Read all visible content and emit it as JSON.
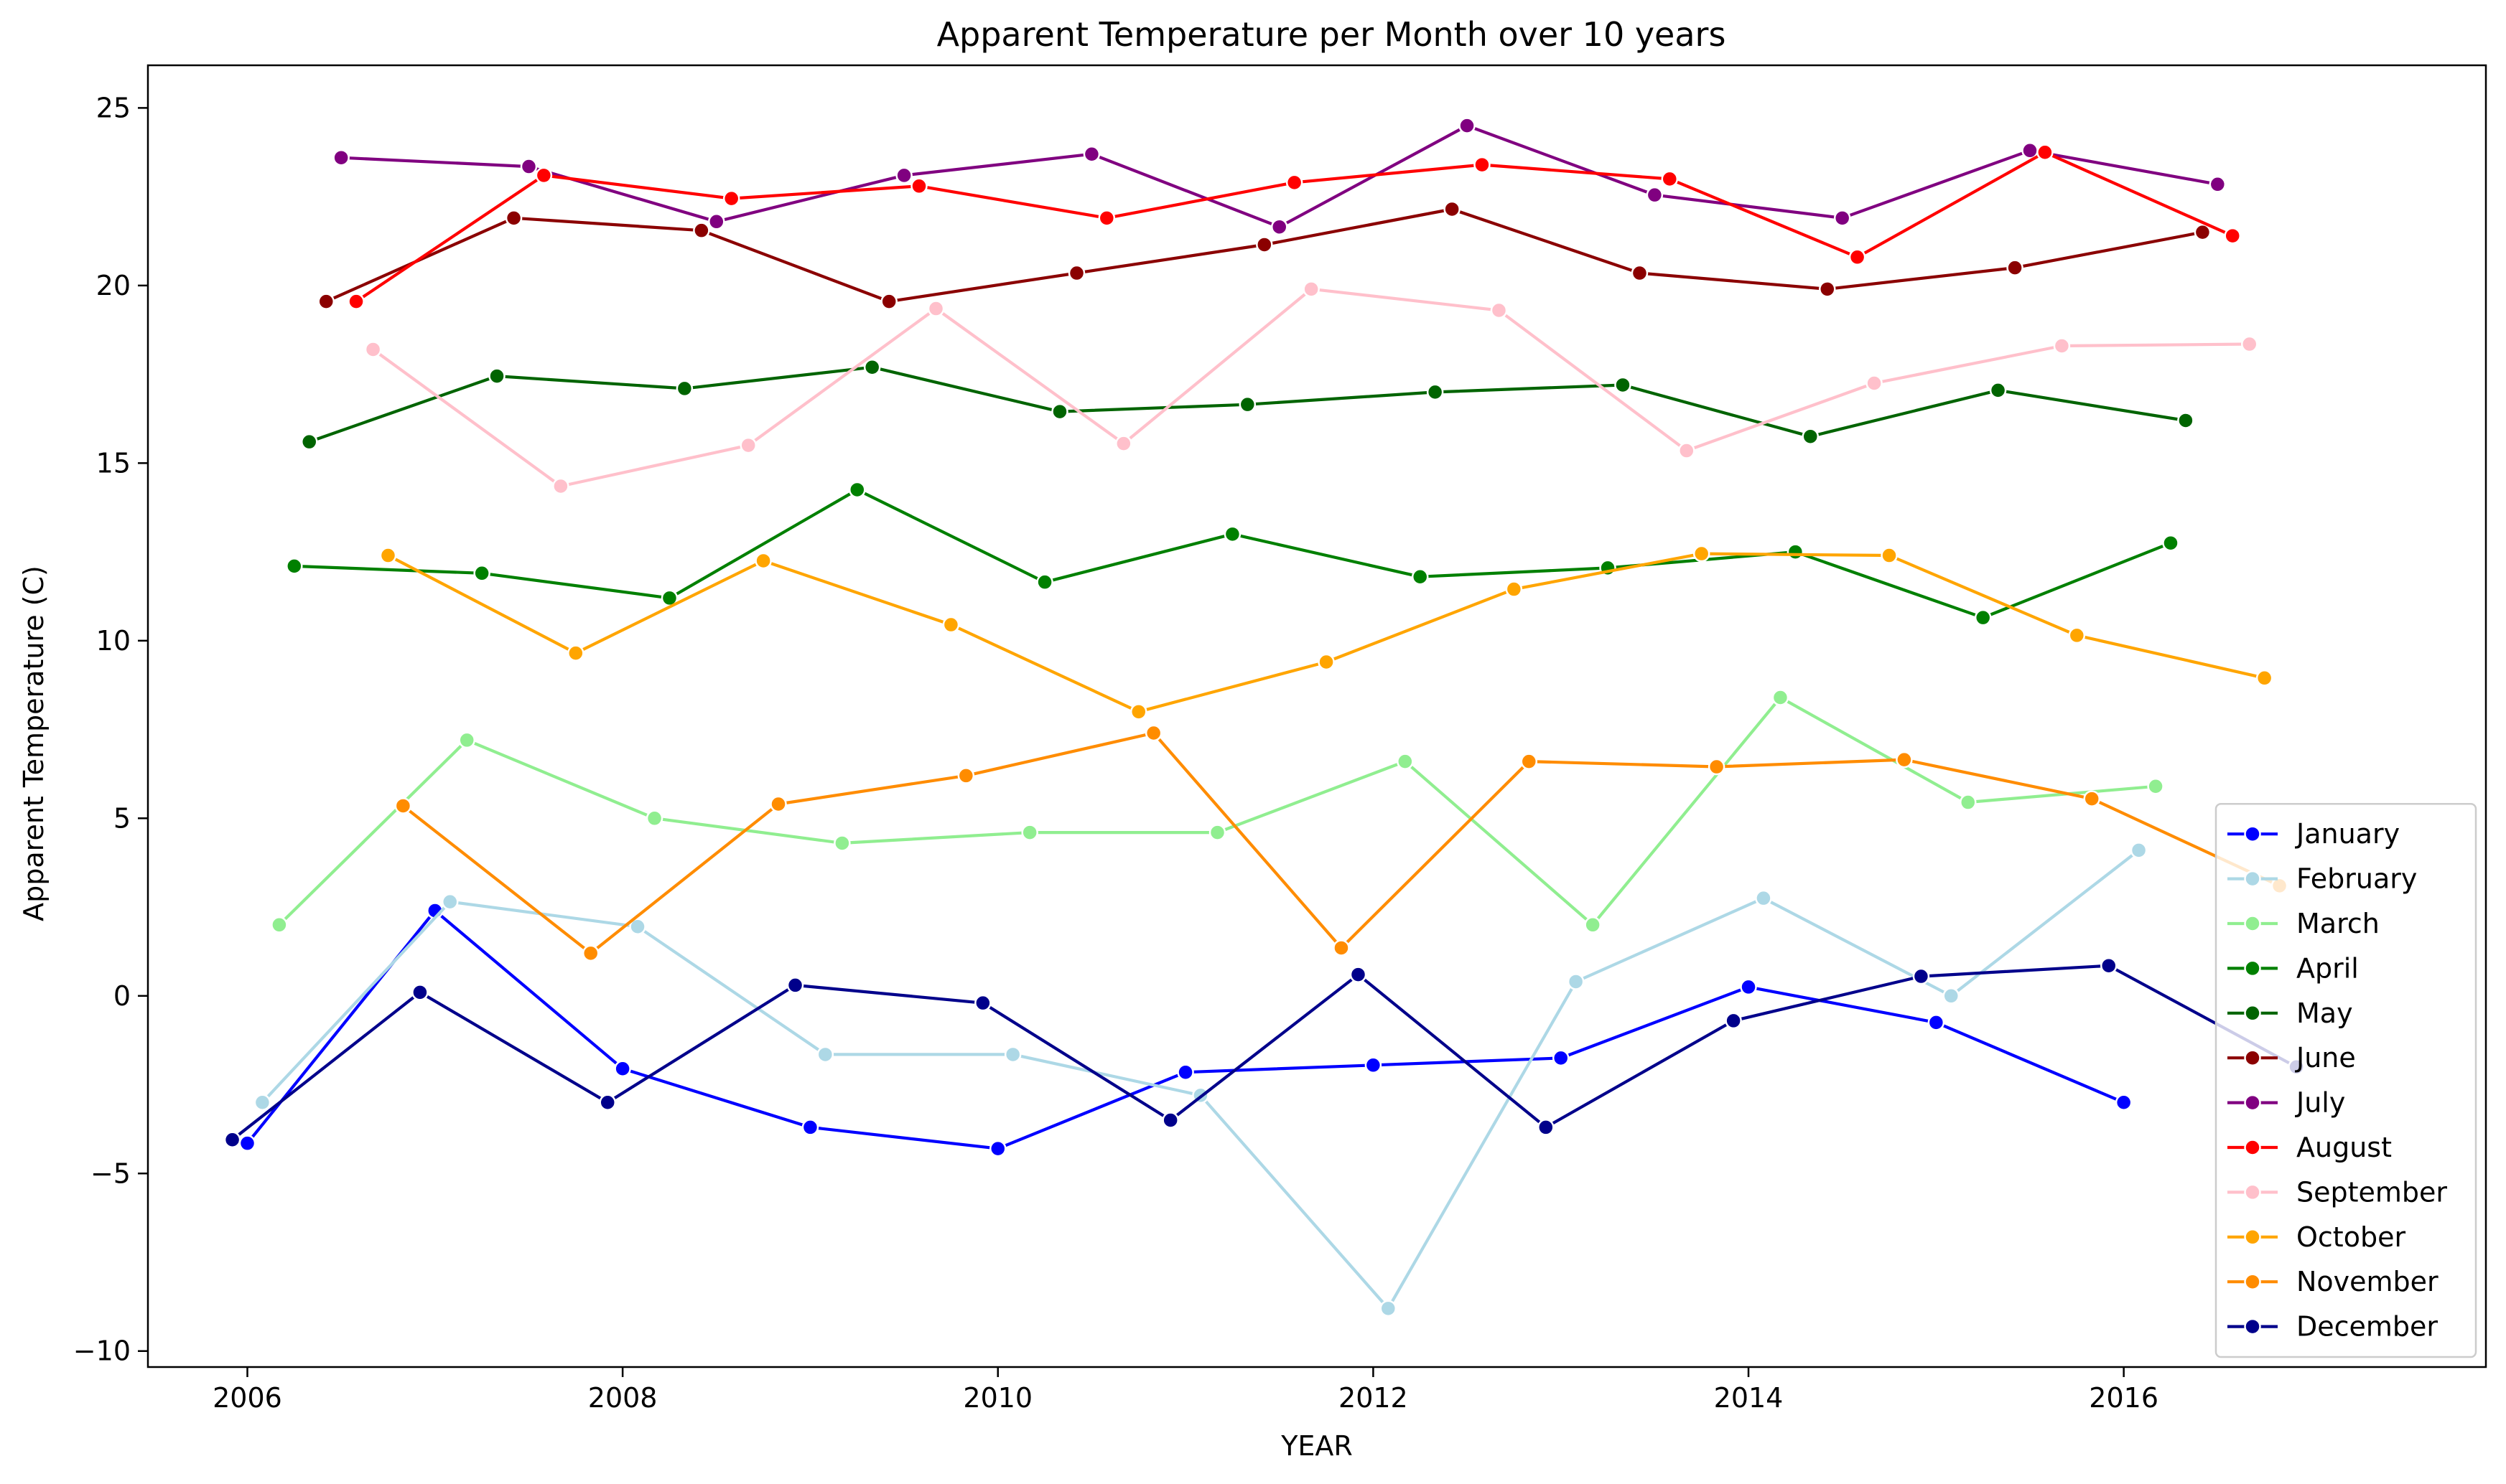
{
  "chart_data": {
    "type": "line",
    "title": "Apparent Temperature per Month over 10 years",
    "xlabel": "YEAR",
    "ylabel": "Apparent Temperature (C)",
    "xlim": [
      2005.47,
      2017.93
    ],
    "ylim": [
      -10.45,
      26.2
    ],
    "x_ticks": [
      2006,
      2008,
      2010,
      2012,
      2014,
      2016
    ],
    "x_tick_labels": [
      "2006",
      "2008",
      "2010",
      "2012",
      "2014",
      "2016"
    ],
    "y_ticks": [
      -10,
      -5,
      0,
      5,
      10,
      15,
      20,
      25
    ],
    "y_tick_labels": [
      "−10",
      "−5",
      "0",
      "5",
      "10",
      "15",
      "20",
      "25"
    ],
    "grid": false,
    "legend_position": "lower-right",
    "series": [
      {
        "name": "January",
        "color": "#0000ff",
        "x": [
          2006.0,
          2007.0,
          2008.0,
          2009.0,
          2010.0,
          2011.0,
          2012.0,
          2013.0,
          2014.0,
          2015.0,
          2016.0
        ],
        "y": [
          -4.15,
          2.4,
          -2.05,
          -3.7,
          -4.3,
          -2.15,
          -1.95,
          -1.75,
          0.25,
          -0.75,
          -3.0
        ]
      },
      {
        "name": "February",
        "color": "#add8e6",
        "x": [
          2006.08,
          2007.08,
          2008.08,
          2009.08,
          2010.08,
          2011.08,
          2012.08,
          2013.08,
          2014.08,
          2015.08,
          2016.08
        ],
        "y": [
          -3.0,
          2.65,
          1.95,
          -1.65,
          -1.65,
          -2.8,
          -8.8,
          0.4,
          2.75,
          0.0,
          4.1
        ]
      },
      {
        "name": "March",
        "color": "#90ee90",
        "x": [
          2006.17,
          2007.17,
          2008.17,
          2009.17,
          2010.17,
          2011.17,
          2012.17,
          2013.17,
          2014.17,
          2015.17,
          2016.17
        ],
        "y": [
          2.0,
          7.2,
          5.0,
          4.3,
          4.6,
          4.6,
          6.6,
          2.0,
          8.4,
          5.45,
          5.9
        ]
      },
      {
        "name": "April",
        "color": "#008000",
        "x": [
          2006.25,
          2007.25,
          2008.25,
          2009.25,
          2010.25,
          2011.25,
          2012.25,
          2013.25,
          2014.25,
          2015.25,
          2016.25
        ],
        "y": [
          12.1,
          11.9,
          11.2,
          14.25,
          11.65,
          13.0,
          11.8,
          12.05,
          12.5,
          10.65,
          12.75
        ]
      },
      {
        "name": "May",
        "color": "#006400",
        "x": [
          2006.33,
          2007.33,
          2008.33,
          2009.33,
          2010.33,
          2011.33,
          2012.33,
          2013.33,
          2014.33,
          2015.33,
          2016.33
        ],
        "y": [
          15.6,
          17.45,
          17.1,
          17.7,
          16.45,
          16.65,
          17.0,
          17.2,
          15.75,
          17.05,
          16.2
        ]
      },
      {
        "name": "June",
        "color": "#8b0000",
        "x": [
          2006.42,
          2007.42,
          2008.42,
          2009.42,
          2010.42,
          2011.42,
          2012.42,
          2013.42,
          2014.42,
          2015.42,
          2016.42
        ],
        "y": [
          19.55,
          21.9,
          21.55,
          19.55,
          20.35,
          21.15,
          22.15,
          20.35,
          19.9,
          20.5,
          21.5
        ]
      },
      {
        "name": "July",
        "color": "#800080",
        "x": [
          2006.5,
          2007.5,
          2008.5,
          2009.5,
          2010.5,
          2011.5,
          2012.5,
          2013.5,
          2014.5,
          2015.5,
          2016.5
        ],
        "y": [
          23.6,
          23.35,
          21.8,
          23.1,
          23.7,
          21.65,
          24.5,
          22.55,
          21.9,
          23.8,
          22.85
        ]
      },
      {
        "name": "August",
        "color": "#ff0000",
        "x": [
          2006.58,
          2007.58,
          2008.58,
          2009.58,
          2010.58,
          2011.58,
          2012.58,
          2013.58,
          2014.58,
          2015.58,
          2016.58
        ],
        "y": [
          19.55,
          23.1,
          22.45,
          22.8,
          21.9,
          22.9,
          23.4,
          23.0,
          20.8,
          23.75,
          21.4
        ]
      },
      {
        "name": "September",
        "color": "#ffc0cb",
        "x": [
          2006.67,
          2007.67,
          2008.67,
          2009.67,
          2010.67,
          2011.67,
          2012.67,
          2013.67,
          2014.67,
          2015.67,
          2016.67
        ],
        "y": [
          18.2,
          14.35,
          15.5,
          19.35,
          15.55,
          19.9,
          19.3,
          15.35,
          17.25,
          18.3,
          18.35
        ]
      },
      {
        "name": "October",
        "color": "#ffa500",
        "x": [
          2006.75,
          2007.75,
          2008.75,
          2009.75,
          2010.75,
          2011.75,
          2012.75,
          2013.75,
          2014.75,
          2015.75,
          2016.75
        ],
        "y": [
          12.4,
          9.65,
          12.25,
          10.45,
          8.0,
          9.4,
          11.45,
          12.45,
          12.4,
          10.15,
          8.95
        ]
      },
      {
        "name": "November",
        "color": "#ff8c00",
        "x": [
          2006.83,
          2007.83,
          2008.83,
          2009.83,
          2010.83,
          2011.83,
          2012.83,
          2013.83,
          2014.83,
          2015.83,
          2016.83
        ],
        "y": [
          5.35,
          1.2,
          5.4,
          6.2,
          7.4,
          1.35,
          6.6,
          6.45,
          6.65,
          5.55,
          3.1
        ]
      },
      {
        "name": "December",
        "color": "#00008b",
        "x": [
          2005.92,
          2006.92,
          2007.92,
          2008.92,
          2009.92,
          2010.92,
          2011.92,
          2012.92,
          2013.92,
          2014.92,
          2015.92,
          2016.92
        ],
        "y": [
          -4.05,
          0.1,
          -3.0,
          0.3,
          -0.2,
          -3.5,
          0.6,
          -3.7,
          -0.7,
          0.55,
          0.85,
          -2.0
        ]
      }
    ]
  }
}
